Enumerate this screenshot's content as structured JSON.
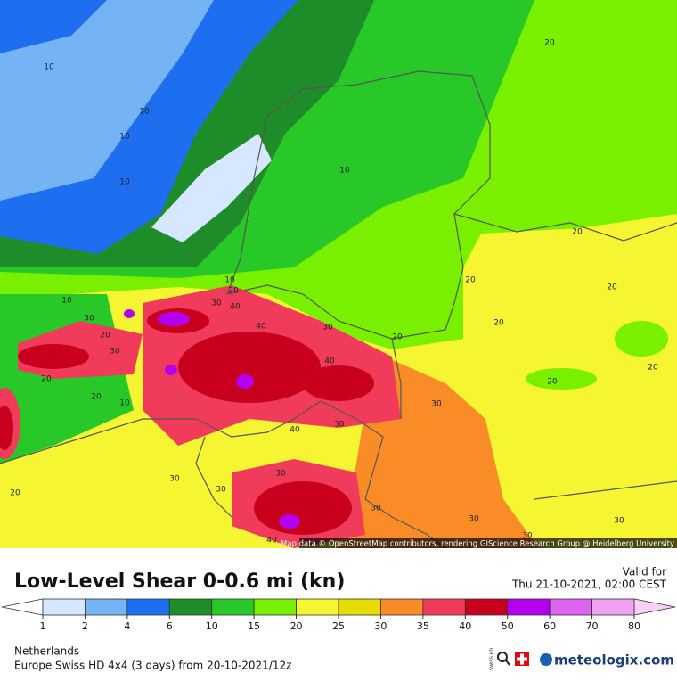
{
  "map": {
    "contour_labels": [
      "10",
      "10",
      "10",
      "10",
      "10",
      "20",
      "20",
      "20",
      "20",
      "20",
      "20",
      "20",
      "20",
      "20",
      "20",
      "20",
      "20",
      "30",
      "30",
      "30",
      "30",
      "30",
      "30",
      "30",
      "30",
      "30",
      "30",
      "30",
      "30",
      "30",
      "40",
      "40",
      "40",
      "40",
      "40",
      "10",
      "20",
      "10",
      "10"
    ],
    "attribution": "Map data © OpenStreetMap contributors, rendering GIScience Research Group @ Heidelberg University"
  },
  "title": "Low-Level Shear 0-0.6 mi (kn)",
  "valid_label": "Valid for",
  "valid_time": "Thu 21-10-2021, 02:00 CEST",
  "legend": {
    "ticks": [
      1,
      2,
      4,
      6,
      10,
      15,
      20,
      25,
      30,
      35,
      40,
      50,
      60,
      70,
      80
    ],
    "colors": [
      "#d6e8ff",
      "#74b4f4",
      "#1e6ef0",
      "#1e8c28",
      "#28c828",
      "#78f000",
      "#f5f532",
      "#e6dc00",
      "#fa8c28",
      "#f03c5a",
      "#c8001e",
      "#b400f0",
      "#dc64f0",
      "#f0a0f0"
    ],
    "under_color": "#ffffff",
    "over_color": "#f8d0f8"
  },
  "region": "Netherlands",
  "model": "Europe Swiss HD 4x4 (3 days) from 20-10-2021/12z",
  "badge": "SWISS HD",
  "logo": "meteologix.com"
}
